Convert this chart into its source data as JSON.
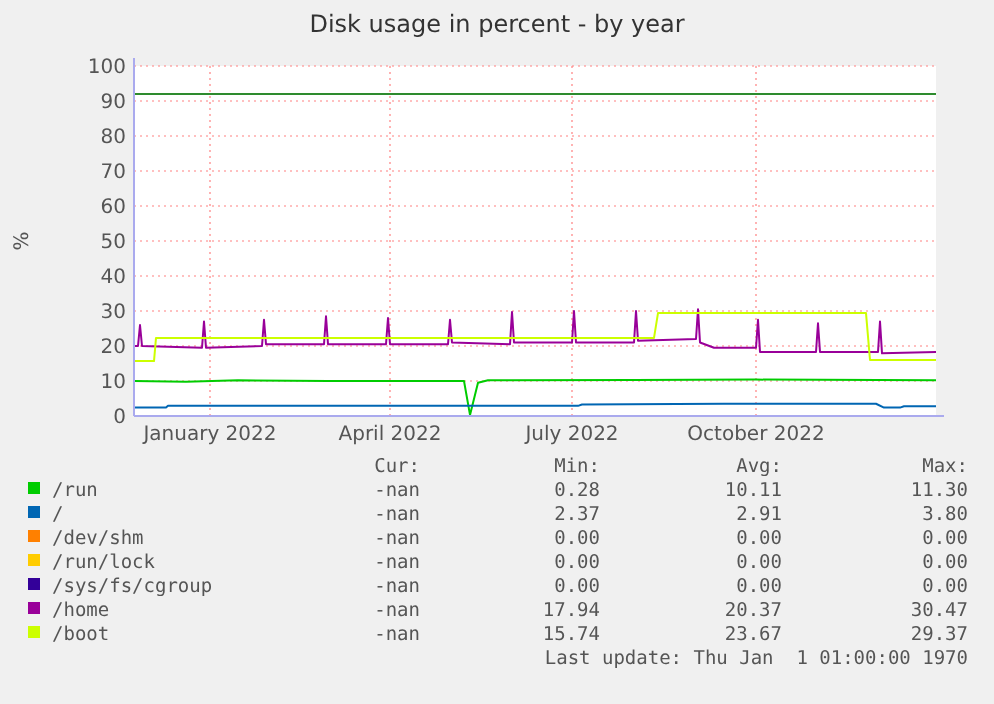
{
  "chart_data": {
    "type": "line",
    "title": "Disk usage in percent - by year",
    "ylabel": "%",
    "xlim": [
      "2021-11-24",
      "2022-12-30"
    ],
    "xticks": [
      {
        "value": "2022-01-01",
        "label": "January 2022"
      },
      {
        "value": "2022-04-01",
        "label": "April 2022"
      },
      {
        "value": "2022-07-01",
        "label": "July 2022"
      },
      {
        "value": "2022-10-01",
        "label": "October 2022"
      }
    ],
    "ylim": [
      0,
      100
    ],
    "yticks": [
      0,
      10,
      20,
      30,
      40,
      50,
      60,
      70,
      80,
      90,
      100
    ],
    "grid": true,
    "legend": "bottom",
    "marker": "none",
    "line_style": "solid",
    "ref_lines": [
      {
        "axis": "y",
        "value": 92,
        "color": "#2e8b2e"
      }
    ],
    "series": [
      {
        "name": "/run",
        "color": "#00cc00",
        "x": [
          "2021-11-24",
          "2021-12-20",
          "2022-01-15",
          "2022-03-01",
          "2022-05-08",
          "2022-05-11",
          "2022-05-15",
          "2022-05-20",
          "2022-08-01",
          "2022-10-01",
          "2022-12-30"
        ],
        "values": [
          10,
          9.8,
          10.2,
          10,
          10,
          0.3,
          9.5,
          10.2,
          10.3,
          10.4,
          10.2
        ]
      },
      {
        "name": "/",
        "color": "#0066b3",
        "x": [
          "2021-11-24",
          "2021-12-10",
          "2021-12-11",
          "2022-07-04",
          "2022-07-06",
          "2022-09-15",
          "2022-11-30",
          "2022-12-04",
          "2022-12-12",
          "2022-12-14",
          "2022-12-30"
        ],
        "values": [
          2.4,
          2.4,
          2.9,
          2.9,
          3.3,
          3.5,
          3.5,
          2.4,
          2.4,
          2.8,
          2.8
        ]
      },
      {
        "name": "/dev/shm",
        "color": "#ff8000"
      },
      {
        "name": "/run/lock",
        "color": "#ffcc00"
      },
      {
        "name": "/sys/fs/cgroup",
        "color": "#330099"
      },
      {
        "name": "/home",
        "color": "#990099",
        "x": [
          "2021-11-24",
          "2021-11-26",
          "2021-11-27",
          "2021-11-28",
          "2021-12-28",
          "2021-12-29",
          "2021-12-30",
          "2022-01-27",
          "2022-01-28",
          "2022-01-29",
          "2022-02-27",
          "2022-02-28",
          "2022-03-01",
          "2022-03-30",
          "2022-03-31",
          "2022-04-01",
          "2022-04-30",
          "2022-05-01",
          "2022-05-02",
          "2022-05-31",
          "2022-06-01",
          "2022-06-02",
          "2022-07-01",
          "2022-07-02",
          "2022-07-03",
          "2022-08-01",
          "2022-08-02",
          "2022-08-03",
          "2022-09-01",
          "2022-09-02",
          "2022-09-03",
          "2022-09-10",
          "2022-10-01",
          "2022-10-02",
          "2022-10-03",
          "2022-10-31",
          "2022-11-01",
          "2022-11-02",
          "2022-12-01",
          "2022-12-02",
          "2022-12-03",
          "2022-12-30"
        ],
        "values": [
          20,
          20,
          26,
          20,
          19.5,
          27,
          19.5,
          20,
          27.5,
          20.5,
          20.5,
          28.5,
          20.5,
          20.5,
          28,
          20.5,
          20.5,
          27.5,
          21,
          20.5,
          29.7,
          21,
          21,
          30,
          21,
          21,
          30,
          21.5,
          22,
          30.5,
          21,
          19.5,
          19.5,
          27.5,
          18.3,
          18.3,
          26.5,
          18.3,
          18.3,
          27,
          17.9,
          18.3
        ]
      },
      {
        "name": "/boot",
        "color": "#ccff00",
        "x": [
          "2021-11-24",
          "2021-12-04",
          "2021-12-05",
          "2022-08-11",
          "2022-08-13",
          "2022-11-25",
          "2022-11-27",
          "2022-12-30"
        ],
        "values": [
          15.7,
          15.7,
          22.3,
          22.3,
          29.4,
          29.4,
          16,
          16
        ]
      }
    ],
    "annotations": [
      "Cur:",
      "Min:",
      "Avg:",
      "Max:",
      "-nan",
      "0.28",
      "10.11",
      "11.30",
      "-nan",
      "2.37",
      "2.91",
      "3.80",
      "-nan",
      "0.00",
      "0.00",
      "0.00",
      "-nan",
      "0.00",
      "0.00",
      "0.00",
      "-nan",
      "0.00",
      "0.00",
      "0.00",
      "-nan",
      "17.94",
      "20.37",
      "30.47",
      "-nan",
      "15.74",
      "23.67",
      "29.37",
      "Last update: Thu Jan  1 01:00:00 1970"
    ]
  }
}
